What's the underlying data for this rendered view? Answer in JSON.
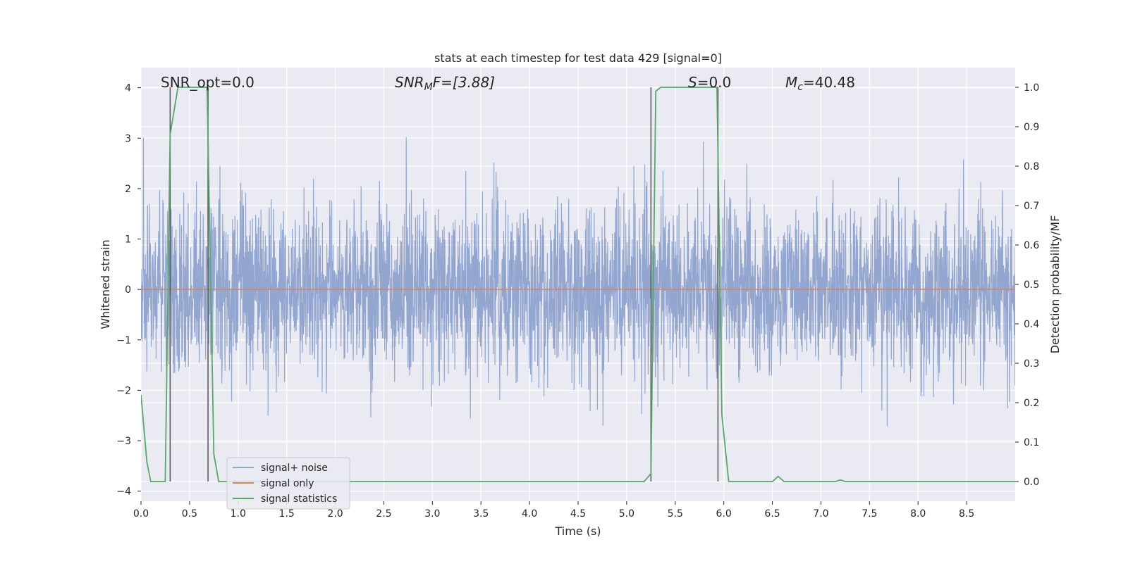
{
  "chart_data": {
    "type": "line",
    "title": "stats at each timestep for test data 429 [signal=0]",
    "xlabel": "Time (s)",
    "ylabel": "Whitened strain",
    "y2label": "Detection probability/MF",
    "xlim": [
      0.0,
      9.0
    ],
    "ylim": [
      -4.2,
      4.4
    ],
    "y2lim": [
      -0.05,
      1.05
    ],
    "xticks": [
      "0.0",
      "0.5",
      "1.0",
      "1.5",
      "2.0",
      "2.5",
      "3.0",
      "3.5",
      "4.0",
      "4.5",
      "5.0",
      "5.5",
      "6.0",
      "6.5",
      "7.0",
      "7.5",
      "8.0",
      "8.5"
    ],
    "yticks": [
      "4",
      "3",
      "2",
      "1",
      "0",
      "−1",
      "−2",
      "−3",
      "−4"
    ],
    "y2ticks": [
      "1.0",
      "0.9",
      "0.8",
      "0.7",
      "0.6",
      "0.5",
      "0.4",
      "0.3",
      "0.2",
      "0.1",
      "0.0"
    ],
    "grid": true,
    "legend_position": "lower-left",
    "annotations": {
      "snr_opt": "SNR_opt=0.0",
      "snr_mf_main": "SNR",
      "snr_mf_sub": "M",
      "snr_mf_rest": "F=[3.88]",
      "s_main": "S",
      "s_rest": "=0.0",
      "mc_main": "M",
      "mc_sub": "c",
      "mc_rest": "=40.48"
    },
    "colors": {
      "noise": "#92a6cf",
      "signal": "#dd8452",
      "stats": "#55a868",
      "vline": "#555555",
      "background": "#eaeaf2",
      "grid": "#ffffff"
    },
    "series": [
      {
        "name": "signal+ noise",
        "kind": "noise",
        "axis": "left",
        "std": 0.82,
        "seed": 429
      },
      {
        "name": "signal only",
        "kind": "constant",
        "axis": "left",
        "value": 0.0
      },
      {
        "name": "signal statistics",
        "kind": "line",
        "axis": "right",
        "x": [
          0.0,
          0.06,
          0.1,
          0.25,
          0.3,
          0.38,
          0.68,
          0.75,
          0.8,
          1.0,
          2.0,
          3.0,
          4.0,
          5.0,
          5.18,
          5.25,
          5.3,
          5.35,
          5.5,
          5.93,
          5.98,
          6.05,
          6.2,
          6.5,
          6.56,
          6.62,
          7.0,
          7.15,
          7.2,
          7.25,
          8.0,
          9.0
        ],
        "y": [
          0.22,
          0.05,
          0.0,
          0.0,
          0.88,
          1.0,
          1.0,
          0.07,
          0.0,
          0.0,
          0.0,
          0.0,
          0.0,
          0.0,
          0.0,
          0.02,
          0.99,
          1.0,
          1.0,
          1.0,
          0.17,
          0.0,
          0.0,
          0.0,
          0.013,
          0.0,
          0.0,
          0.0,
          0.004,
          0.0,
          0.0,
          0.0
        ]
      }
    ],
    "vlines": [
      0.3,
      0.69,
      5.25,
      5.94
    ]
  }
}
